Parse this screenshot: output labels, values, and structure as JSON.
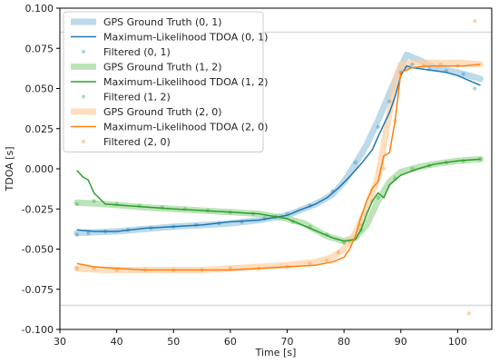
{
  "chart_data": {
    "type": "line",
    "title": "",
    "xlabel": "Time [s]",
    "ylabel": "TDOA [s]",
    "xlim": [
      30,
      106
    ],
    "ylim": [
      -0.1,
      0.1
    ],
    "xticks": [
      30,
      40,
      50,
      60,
      70,
      80,
      90,
      100
    ],
    "xtick_labels": [
      "30",
      "40",
      "50",
      "60",
      "70",
      "80",
      "90",
      "100"
    ],
    "yticks": [
      -0.1,
      -0.075,
      -0.05,
      -0.025,
      0.0,
      0.025,
      0.05,
      0.075,
      0.1
    ],
    "ytick_labels": [
      "-0.100",
      "-0.075",
      "-0.050",
      "-0.025",
      "0.000",
      "0.025",
      "0.050",
      "0.075",
      "0.100"
    ],
    "grid": false,
    "legend_position": "upper-left",
    "reference_lines": [
      {
        "y": 0.085,
        "color": "#d9d9d9"
      },
      {
        "y": -0.085,
        "color": "#d9d9d9"
      }
    ],
    "series": [
      {
        "name": "GPS Ground Truth (0, 1)",
        "kind": "ground_truth",
        "color": "#9ecae1",
        "x": [
          33,
          40,
          50,
          60,
          65,
          70,
          75,
          78,
          80,
          82,
          84,
          86,
          88,
          90,
          91,
          93,
          96,
          100,
          104
        ],
        "y": [
          -0.04,
          -0.039,
          -0.036,
          -0.034,
          -0.032,
          -0.029,
          -0.022,
          -0.016,
          -0.008,
          0.003,
          0.015,
          0.03,
          0.047,
          0.063,
          0.071,
          0.068,
          0.063,
          0.06,
          0.056
        ]
      },
      {
        "name": "Maximum-Likelihood TDOA (0, 1)",
        "kind": "estimate",
        "color": "#1f77b4",
        "x": [
          33,
          36,
          40,
          45,
          50,
          55,
          60,
          65,
          70,
          72,
          75,
          77,
          79,
          81,
          83,
          85,
          86,
          88,
          89,
          90,
          91,
          92,
          94,
          96,
          98,
          100,
          102,
          104
        ],
        "y": [
          -0.038,
          -0.039,
          -0.039,
          -0.037,
          -0.036,
          -0.035,
          -0.033,
          -0.032,
          -0.029,
          -0.026,
          -0.022,
          -0.018,
          -0.012,
          -0.005,
          0.003,
          0.012,
          0.02,
          0.035,
          0.045,
          0.058,
          0.064,
          0.063,
          0.062,
          0.061,
          0.06,
          0.058,
          0.055,
          0.052
        ]
      },
      {
        "name": "Filtered (0, 1)",
        "kind": "filtered",
        "color": "#1f77b4",
        "x": [
          33,
          35,
          38,
          42,
          46,
          50,
          54,
          58,
          62,
          66,
          70,
          74,
          78,
          82,
          86,
          88,
          90,
          92,
          95,
          98,
          101,
          103
        ],
        "y": [
          -0.041,
          -0.04,
          -0.039,
          -0.038,
          -0.037,
          -0.036,
          -0.035,
          -0.034,
          -0.033,
          -0.031,
          -0.028,
          -0.023,
          -0.014,
          0.004,
          0.026,
          0.042,
          0.06,
          0.065,
          0.062,
          0.061,
          0.059,
          0.05
        ]
      },
      {
        "name": "GPS Ground Truth (1, 2)",
        "kind": "ground_truth",
        "color": "#a1d99b",
        "x": [
          33,
          38,
          45,
          50,
          55,
          60,
          65,
          70,
          73,
          75,
          77,
          79,
          80,
          82,
          84,
          86,
          88,
          90,
          93,
          96,
          100,
          104
        ],
        "y": [
          -0.021,
          -0.022,
          -0.024,
          -0.025,
          -0.026,
          -0.027,
          -0.028,
          -0.031,
          -0.034,
          -0.038,
          -0.042,
          -0.044,
          -0.045,
          -0.043,
          -0.035,
          -0.02,
          -0.008,
          -0.002,
          0.001,
          0.003,
          0.005,
          0.006
        ]
      },
      {
        "name": "Maximum-Likelihood TDOA (1, 2)",
        "kind": "estimate",
        "color": "#2ca02c",
        "x": [
          33,
          34,
          35,
          36,
          38,
          42,
          46,
          50,
          55,
          60,
          65,
          70,
          72,
          74,
          76,
          78,
          80,
          82,
          83,
          84,
          85,
          86,
          87,
          88,
          90,
          93,
          96,
          100,
          104
        ],
        "y": [
          -0.001,
          -0.005,
          -0.007,
          -0.015,
          -0.022,
          -0.023,
          -0.024,
          -0.025,
          -0.026,
          -0.027,
          -0.028,
          -0.031,
          -0.034,
          -0.037,
          -0.04,
          -0.043,
          -0.045,
          -0.044,
          -0.038,
          -0.028,
          -0.02,
          -0.015,
          -0.018,
          -0.01,
          -0.004,
          0.0,
          0.003,
          0.005,
          0.006
        ]
      },
      {
        "name": "Filtered (1, 2)",
        "kind": "filtered",
        "color": "#2ca02c",
        "x": [
          33,
          36,
          40,
          44,
          48,
          52,
          56,
          60,
          64,
          68,
          71,
          74,
          77,
          80,
          83,
          86,
          89,
          92,
          95,
          98,
          101,
          104
        ],
        "y": [
          -0.022,
          -0.02,
          -0.022,
          -0.023,
          -0.024,
          -0.025,
          -0.026,
          -0.027,
          -0.028,
          -0.03,
          -0.033,
          -0.036,
          -0.041,
          -0.046,
          -0.038,
          -0.018,
          -0.006,
          0.0,
          0.002,
          0.004,
          0.005,
          0.006
        ]
      },
      {
        "name": "GPS Ground Truth (2, 0)",
        "kind": "ground_truth",
        "color": "#fdd0a2",
        "x": [
          33,
          38,
          45,
          50,
          55,
          60,
          65,
          70,
          75,
          78,
          80,
          82,
          84,
          86,
          87,
          88,
          89,
          90,
          92,
          96,
          100,
          104
        ],
        "y": [
          -0.062,
          -0.063,
          -0.063,
          -0.063,
          -0.063,
          -0.062,
          -0.061,
          -0.06,
          -0.058,
          -0.055,
          -0.05,
          -0.04,
          -0.025,
          -0.005,
          0.015,
          0.035,
          0.055,
          0.065,
          0.066,
          0.066,
          0.066,
          0.065
        ]
      },
      {
        "name": "Maximum-Likelihood TDOA (2, 0)",
        "kind": "estimate",
        "color": "#ff7f0e",
        "x": [
          33,
          36,
          40,
          45,
          50,
          55,
          60,
          65,
          70,
          75,
          78,
          80,
          81,
          82,
          83,
          84,
          85,
          86,
          87,
          88,
          89,
          90,
          92,
          95,
          98,
          101,
          104
        ],
        "y": [
          -0.059,
          -0.061,
          -0.062,
          -0.063,
          -0.063,
          -0.063,
          -0.063,
          -0.062,
          -0.061,
          -0.06,
          -0.058,
          -0.055,
          -0.05,
          -0.042,
          -0.03,
          -0.02,
          -0.012,
          -0.008,
          0.008,
          0.01,
          0.03,
          0.06,
          0.063,
          0.064,
          0.064,
          0.064,
          0.065
        ]
      },
      {
        "name": "Filtered (2, 0)",
        "kind": "filtered",
        "color": "#ff7f0e",
        "x": [
          33,
          36,
          40,
          45,
          50,
          55,
          60,
          65,
          70,
          74,
          77,
          79,
          81,
          83,
          85,
          87,
          89,
          91,
          94,
          97,
          100,
          102,
          103
        ],
        "y": [
          -0.062,
          -0.062,
          -0.063,
          -0.063,
          -0.063,
          -0.063,
          -0.062,
          -0.062,
          -0.061,
          -0.059,
          -0.057,
          -0.052,
          -0.045,
          -0.035,
          -0.02,
          0.0,
          0.03,
          0.063,
          0.064,
          0.065,
          0.064,
          -0.09,
          0.092
        ]
      }
    ]
  }
}
